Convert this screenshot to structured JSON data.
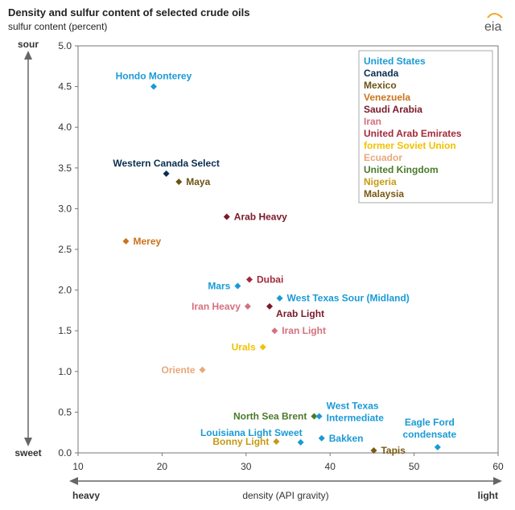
{
  "chart_data": {
    "type": "scatter",
    "title": "Density and sulfur content of selected crude oils",
    "subtitle": "sulfur content (percent)",
    "xlabel": "density (API gravity)",
    "xlim": [
      10,
      60
    ],
    "ylim": [
      0,
      5
    ],
    "x_ticks": [
      "10",
      "20",
      "30",
      "40",
      "50",
      "60"
    ],
    "y_ticks": [
      "0.0",
      "0.5",
      "1.0",
      "1.5",
      "2.0",
      "2.5",
      "3.0",
      "3.5",
      "4.0",
      "4.5",
      "5.0"
    ],
    "x_axis_ends": {
      "left": "heavy",
      "right": "light"
    },
    "y_axis_ends": {
      "top": "sour",
      "bottom": "sweet"
    },
    "grid": false,
    "legend_position": "top-right",
    "legend": [
      {
        "name": "United States",
        "color": "#1a9ad6"
      },
      {
        "name": "Canada",
        "color": "#0b2e4f"
      },
      {
        "name": "Mexico",
        "color": "#6b5313"
      },
      {
        "name": "Venezuela",
        "color": "#c9731c"
      },
      {
        "name": "Saudi Arabia",
        "color": "#7a1a28"
      },
      {
        "name": "Iran",
        "color": "#d4707e"
      },
      {
        "name": "United Arab Emirates",
        "color": "#a32a3b"
      },
      {
        "name": "former Soviet Union",
        "color": "#f2c100"
      },
      {
        "name": "Ecuador",
        "color": "#e9a77a"
      },
      {
        "name": "United Kingdom",
        "color": "#4a7a2a"
      },
      {
        "name": "Nigeria",
        "color": "#c59a14"
      },
      {
        "name": "Malaysia",
        "color": "#7a5a12"
      }
    ],
    "points": [
      {
        "name": "Hondo Monterey",
        "country": "United States",
        "x": 19,
        "y": 4.5,
        "color": "#1a9ad6",
        "label_pos": "above"
      },
      {
        "name": "Western Canada Select",
        "country": "Canada",
        "x": 20.5,
        "y": 3.43,
        "color": "#0b2e4f",
        "label_pos": "above"
      },
      {
        "name": "Maya",
        "country": "Mexico",
        "x": 22,
        "y": 3.33,
        "color": "#6b5313",
        "label_pos": "right"
      },
      {
        "name": "Arab Heavy",
        "country": "Saudi Arabia",
        "x": 27.7,
        "y": 2.9,
        "color": "#7a1a28",
        "label_pos": "right"
      },
      {
        "name": "Merey",
        "country": "Venezuela",
        "x": 15.7,
        "y": 2.6,
        "color": "#c9731c",
        "label_pos": "right"
      },
      {
        "name": "Dubai",
        "country": "United Arab Emirates",
        "x": 30.4,
        "y": 2.13,
        "color": "#a32a3b",
        "label_pos": "right"
      },
      {
        "name": "Mars",
        "country": "United States",
        "x": 29,
        "y": 2.05,
        "color": "#1a9ad6",
        "label_pos": "left"
      },
      {
        "name": "West Texas Sour (Midland)",
        "country": "United States",
        "x": 34,
        "y": 1.9,
        "color": "#1a9ad6",
        "label_pos": "right"
      },
      {
        "name": "Iran Heavy",
        "country": "Iran",
        "x": 30.2,
        "y": 1.8,
        "color": "#d4707e",
        "label_pos": "left"
      },
      {
        "name": "Arab Light",
        "country": "Saudi Arabia",
        "x": 32.8,
        "y": 1.8,
        "color": "#7a1a28",
        "label_pos": "below-right"
      },
      {
        "name": "Iran Light",
        "country": "Iran",
        "x": 33.4,
        "y": 1.5,
        "color": "#d4707e",
        "label_pos": "right"
      },
      {
        "name": "Urals",
        "country": "former Soviet Union",
        "x": 32,
        "y": 1.3,
        "color": "#f2c100",
        "label_pos": "left"
      },
      {
        "name": "Oriente",
        "country": "Ecuador",
        "x": 24.8,
        "y": 1.02,
        "color": "#e9a77a",
        "label_pos": "left"
      },
      {
        "name": "North Sea Brent",
        "country": "United Kingdom",
        "x": 38.1,
        "y": 0.45,
        "color": "#4a7a2a",
        "label_pos": "left"
      },
      {
        "name": "West Texas Intermediate",
        "country": "United States",
        "x": 38.7,
        "y": 0.45,
        "color": "#1a9ad6",
        "label_pos": "right-two-line"
      },
      {
        "name": "Louisiana Light Sweet",
        "country": "United States",
        "x": 36.5,
        "y": 0.13,
        "color": "#1a9ad6",
        "label_pos": "above-left"
      },
      {
        "name": "Bonny Light",
        "country": "Nigeria",
        "x": 33.6,
        "y": 0.14,
        "color": "#c59a14",
        "label_pos": "left"
      },
      {
        "name": "Bakken",
        "country": "United States",
        "x": 39,
        "y": 0.18,
        "color": "#1a9ad6",
        "label_pos": "right"
      },
      {
        "name": "Tapis",
        "country": "Malaysia",
        "x": 45.2,
        "y": 0.03,
        "color": "#7a5a12",
        "label_pos": "right"
      },
      {
        "name": "Eagle Ford condensate",
        "country": "United States",
        "x": 52.8,
        "y": 0.07,
        "color": "#1a9ad6",
        "label_pos": "above-two-line"
      }
    ]
  },
  "logo": {
    "text": "eia"
  }
}
